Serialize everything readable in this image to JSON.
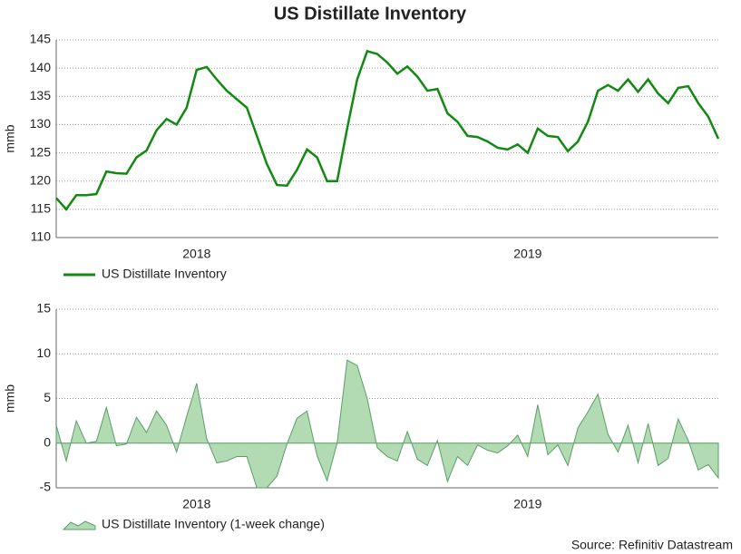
{
  "source": "Source: Refinitiv Datastream",
  "chart_data": [
    {
      "type": "line",
      "title": "US Distillate Inventory",
      "y_label": "mmb",
      "categories": [
        null,
        null,
        null,
        null,
        null,
        null,
        null,
        null,
        null,
        null,
        null,
        null,
        null,
        null,
        "2018",
        null,
        null,
        null,
        null,
        null,
        null,
        null,
        null,
        null,
        null,
        null,
        null,
        null,
        null,
        null,
        null,
        null,
        null,
        null,
        null,
        null,
        null,
        null,
        null,
        null,
        null,
        null,
        null,
        null,
        null,
        null,
        null,
        "2019",
        null,
        null,
        null,
        null,
        null,
        null,
        null,
        null,
        null,
        null,
        null,
        null,
        null,
        null,
        null,
        null,
        null,
        null,
        null
      ],
      "series": [
        {
          "name": "US Distillate Inventory",
          "color": "#128a12",
          "values": [
            117,
            115,
            117.5,
            117.5,
            117.7,
            121.7,
            121.4,
            121.3,
            124.2,
            125.4,
            129,
            131,
            130,
            133,
            139.7,
            140.2,
            138,
            136,
            134.5,
            133,
            128,
            123,
            119.3,
            119.2,
            122,
            125.6,
            124.2,
            120,
            120,
            129.3,
            138,
            143,
            142.5,
            141,
            139,
            140.3,
            138.5,
            136,
            136.3,
            132,
            130.5,
            128,
            127.8,
            127,
            125.9,
            125.6,
            126.5,
            125,
            129.3,
            128,
            127.8,
            125.3,
            127,
            130.5,
            136,
            137,
            136,
            138,
            135.8,
            138,
            135.5,
            133.8,
            136.5,
            136.8,
            133.8,
            131.4,
            127.5
          ]
        }
      ],
      "ylim": [
        110,
        145
      ],
      "yticks": [
        110,
        115,
        120,
        125,
        130,
        135,
        140,
        145
      ],
      "grid": true
    },
    {
      "type": "area",
      "y_label": "mmb",
      "categories": [
        null,
        null,
        null,
        null,
        null,
        null,
        null,
        null,
        null,
        null,
        null,
        null,
        null,
        null,
        "2018",
        null,
        null,
        null,
        null,
        null,
        null,
        null,
        null,
        null,
        null,
        null,
        null,
        null,
        null,
        null,
        null,
        null,
        null,
        null,
        null,
        null,
        null,
        null,
        null,
        null,
        null,
        null,
        null,
        null,
        null,
        null,
        null,
        "2019",
        null,
        null,
        null,
        null,
        null,
        null,
        null,
        null,
        null,
        null,
        null,
        null,
        null,
        null,
        null,
        null,
        null,
        null,
        null
      ],
      "series": [
        {
          "name": "US Distillate Inventory (1-week change)",
          "color": "#b3dbb3",
          "values": [
            2,
            -2,
            2.5,
            0,
            0.2,
            4,
            -0.3,
            -0.1,
            2.9,
            1.2,
            3.6,
            2,
            -1,
            3,
            6.7,
            0.5,
            -2.2,
            -2,
            -1.5,
            -1.5,
            -5,
            -5,
            -3.7,
            -0.1,
            2.8,
            3.6,
            -1.4,
            -4.2,
            0,
            9.3,
            8.7,
            5,
            -0.5,
            -1.5,
            -2,
            1.3,
            -1.8,
            -2.5,
            0.3,
            -4.3,
            -1.5,
            -2.5,
            -0.2,
            -0.8,
            -1.1,
            -0.3,
            0.9,
            -1.5,
            4.3,
            -1.3,
            -0.2,
            -2.5,
            1.7,
            3.5,
            5.5,
            1,
            -1,
            2,
            -2.2,
            2.2,
            -2.5,
            -1.7,
            2.7,
            0.3,
            -3,
            -2.4,
            -3.9
          ]
        }
      ],
      "ylim": [
        -5,
        15
      ],
      "yticks": [
        -5,
        0,
        5,
        10,
        15
      ],
      "grid": true
    }
  ]
}
